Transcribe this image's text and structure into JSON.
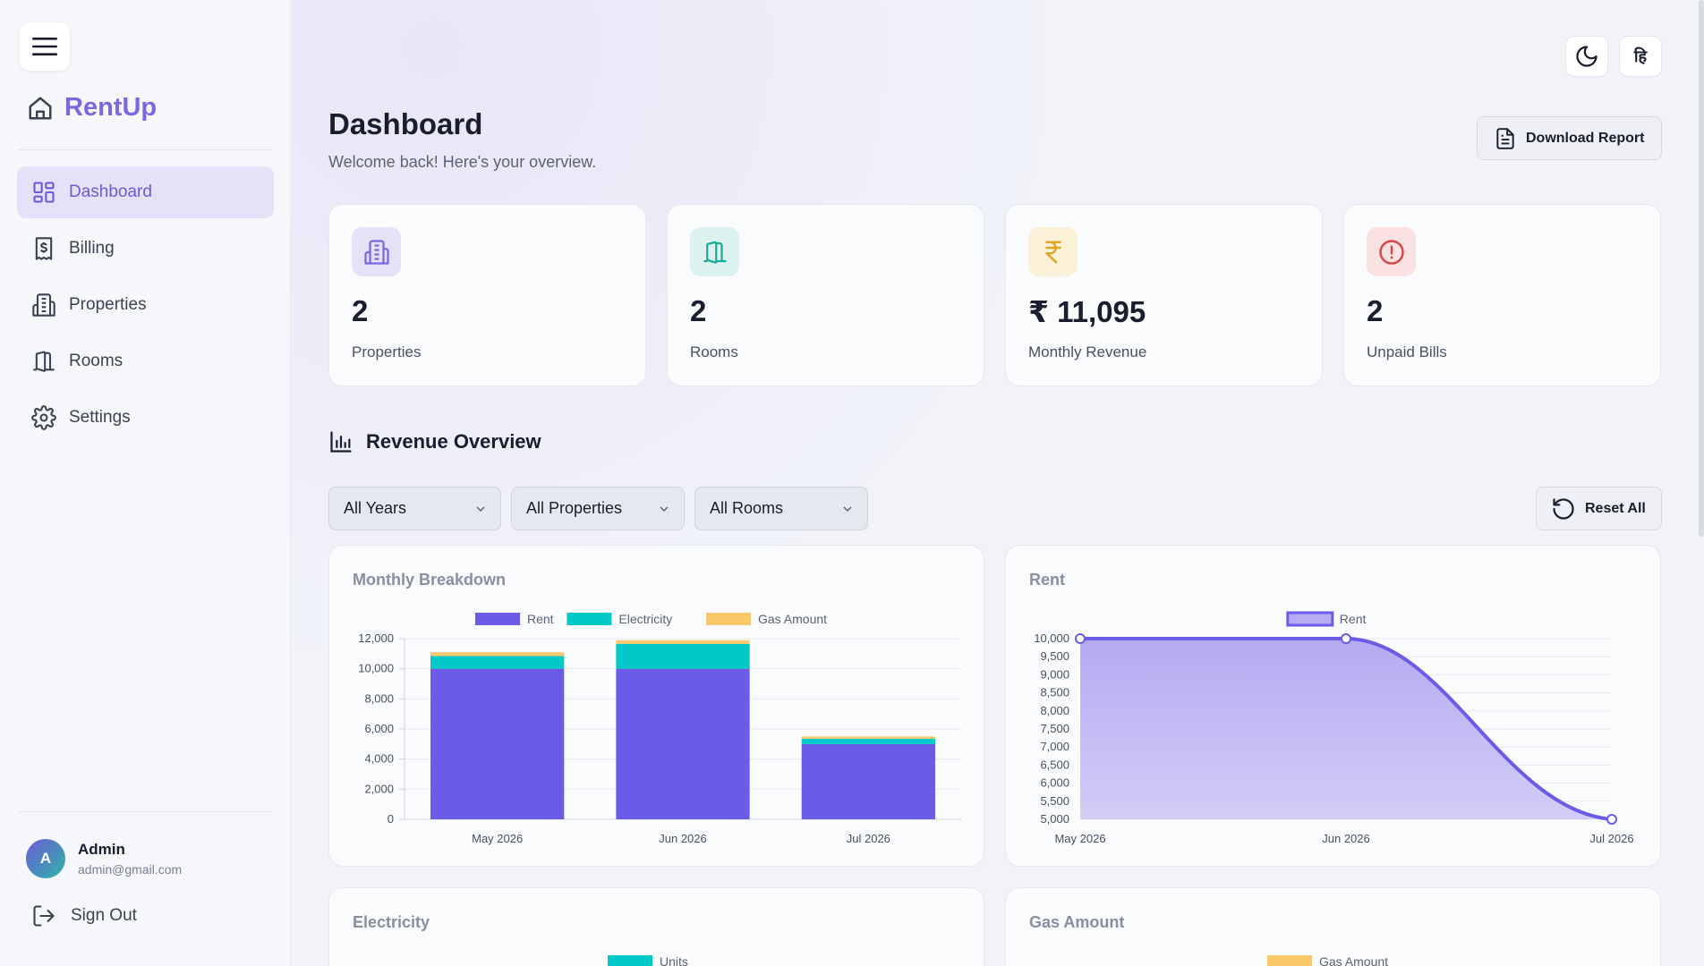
{
  "sidebar": {
    "brand": "RentUp",
    "nav": [
      {
        "label": "Dashboard",
        "icon": "dashboard-icon",
        "active": true
      },
      {
        "label": "Billing",
        "icon": "receipt-icon",
        "active": false
      },
      {
        "label": "Properties",
        "icon": "building-icon",
        "active": false
      },
      {
        "label": "Rooms",
        "icon": "door-icon",
        "active": false
      },
      {
        "label": "Settings",
        "icon": "gear-icon",
        "active": false
      }
    ],
    "user": {
      "initial": "A",
      "name": "Admin",
      "email": "admin@gmail.com"
    },
    "signout": "Sign Out"
  },
  "header": {
    "lang_label": "हि",
    "title": "Dashboard",
    "subtitle": "Welcome back! Here's your overview.",
    "download_label": "Download Report"
  },
  "stats": [
    {
      "value": "2",
      "label": "Properties",
      "icon": "building-icon",
      "color": "#7b68e0",
      "bg": "#e4e1f8"
    },
    {
      "value": "2",
      "label": "Rooms",
      "icon": "door-icon",
      "color": "#1aaa9c",
      "bg": "#dcf2ef"
    },
    {
      "value": "₹ 11,095",
      "label": "Monthly Revenue",
      "icon": "rupee-icon",
      "color": "#e0a526",
      "bg": "#fbf1d9"
    },
    {
      "value": "2",
      "label": "Unpaid Bills",
      "icon": "alert-icon",
      "color": "#d94848",
      "bg": "#fbe2e2"
    }
  ],
  "revenue": {
    "title": "Revenue Overview",
    "filters": {
      "year": "All Years",
      "property": "All Properties",
      "room": "All Rooms"
    },
    "reset_label": "Reset All"
  },
  "colors": {
    "rent": "#6b5ce7",
    "electricity": "#00c9c8",
    "gas": "#f8c86a"
  },
  "chart_data": [
    {
      "type": "bar",
      "title": "Monthly Breakdown",
      "categories": [
        "May 2026",
        "Jun 2026",
        "Jul 2026"
      ],
      "series": [
        {
          "name": "Rent",
          "values": [
            10000,
            10000,
            5000
          ]
        },
        {
          "name": "Electricity",
          "values": [
            850,
            1650,
            350
          ]
        },
        {
          "name": "Gas Amount",
          "values": [
            245,
            245,
            150
          ]
        }
      ],
      "stacked": true,
      "ylim": [
        0,
        12000
      ],
      "yticks": [
        0,
        2000,
        4000,
        6000,
        8000,
        10000,
        12000
      ],
      "legend": "top-center"
    },
    {
      "type": "area",
      "title": "Rent",
      "categories": [
        "May 2026",
        "Jun 2026",
        "Jul 2026"
      ],
      "series": [
        {
          "name": "Rent",
          "values": [
            10000,
            10000,
            5000
          ]
        }
      ],
      "ylim": [
        5000,
        10000
      ],
      "yticks": [
        5000,
        5500,
        6000,
        6500,
        7000,
        7500,
        8000,
        8500,
        9000,
        9500,
        10000
      ],
      "legend": "top-center"
    },
    {
      "type": "bar",
      "title": "Electricity",
      "series": [
        {
          "name": "Units",
          "values": []
        }
      ],
      "legend": "top-center"
    },
    {
      "type": "bar",
      "title": "Gas Amount",
      "series": [
        {
          "name": "Gas Amount",
          "values": []
        }
      ],
      "legend": "top-center"
    }
  ]
}
